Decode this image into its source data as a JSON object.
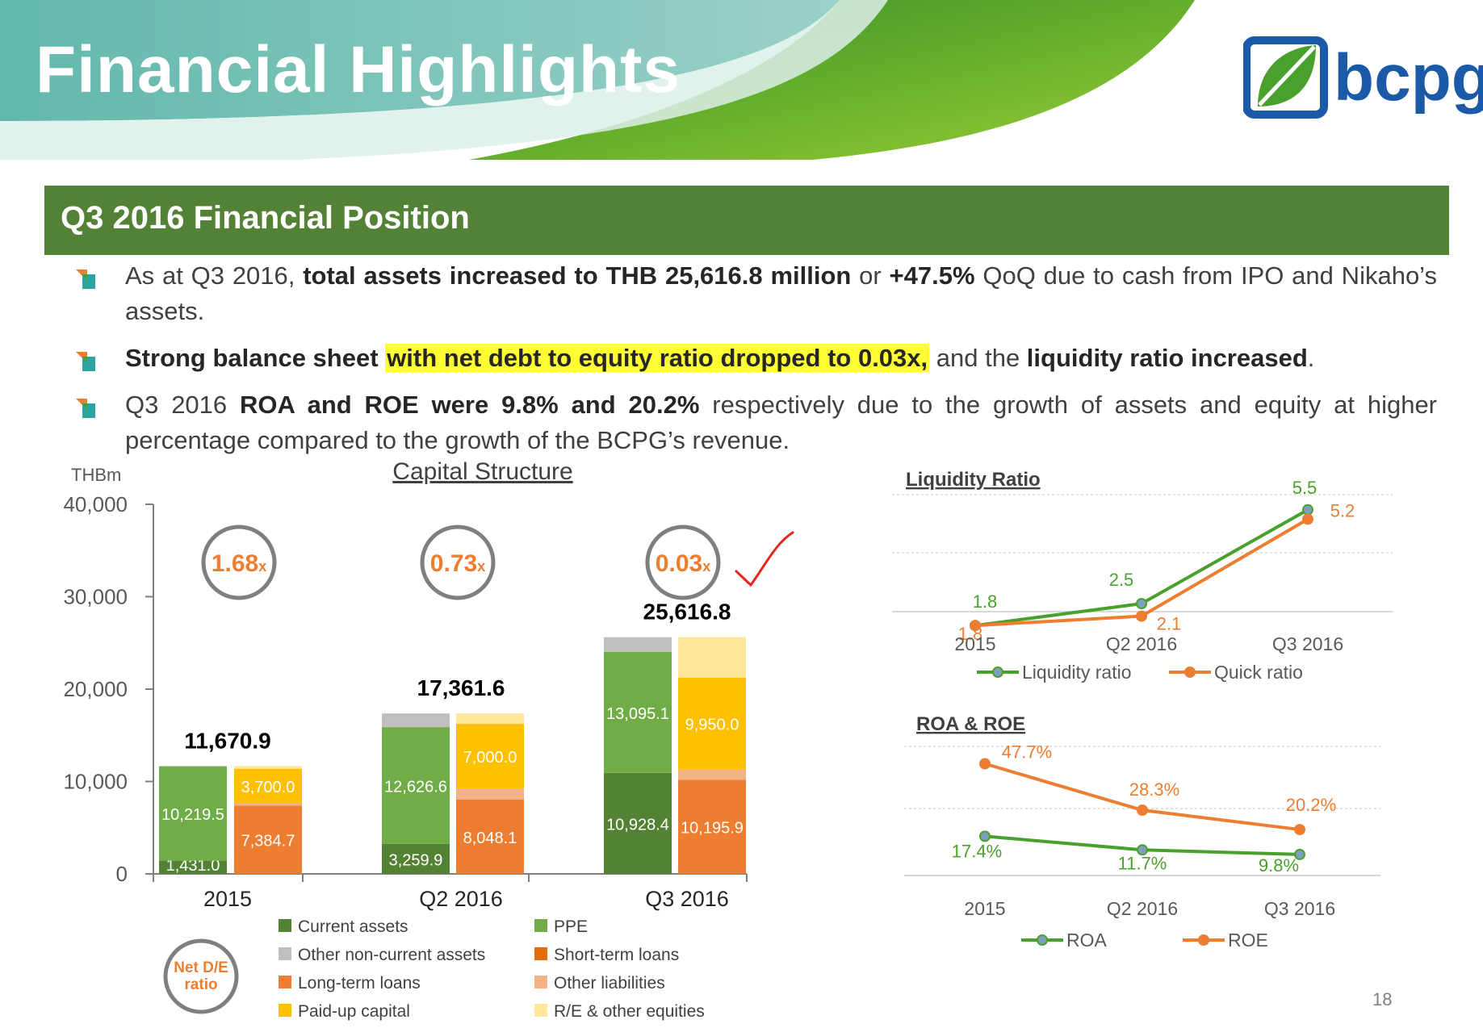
{
  "title": "Financial Highlights",
  "logo": {
    "text": "bcpg"
  },
  "section_title": "Q3 2016 Financial Position",
  "bullets": [
    {
      "p1": "As at Q3 2016, ",
      "b1": "total assets increased to THB 25,616.8 million",
      "p2": " or ",
      "b2": "+47.5%",
      "p3": " QoQ due to cash from IPO and Nikaho’s assets."
    },
    {
      "b1": "Strong balance sheet",
      "h1": "with net debt to equity ratio dropped to 0.03x,",
      "p1": " and the ",
      "b2": "liquidity ratio increased",
      "p2": "."
    },
    {
      "p1": "Q3 2016 ",
      "b1": "ROA and ROE were 9.8% and 20.2%",
      "p2": " respectively due to the growth of assets and equity at higher percentage compared to the growth of the BCPG’s revenue."
    }
  ],
  "page_number": "18",
  "colors": {
    "current_assets": "#548235",
    "ppe": "#70ad47",
    "other_nca": "#bfbfbf",
    "st_loans": "#e46c0a",
    "lt_loans": "#ed7d31",
    "other_liab": "#f4b183",
    "paid_up": "#ffc000",
    "re_other": "#ffe699",
    "green_line": "#4aa02c",
    "orange_line": "#ed7d31",
    "header_green": "#538135",
    "de_text": "#ed7d31"
  },
  "chart_data": [
    {
      "type": "bar",
      "title": "Capital Structure",
      "ylabel": "THBm",
      "ylim": [
        0,
        40000
      ],
      "yticks": [
        "0",
        "10,000",
        "20,000",
        "30,000",
        "40,000"
      ],
      "categories": [
        "2015",
        "Q2 2016",
        "Q3 2016"
      ],
      "totals": [
        "11,670.9",
        "17,361.6",
        "25,616.8"
      ],
      "total_values": [
        11670.9,
        17361.6,
        25616.8
      ],
      "de_ratios": [
        {
          "value": "1.68",
          "unit": "x"
        },
        {
          "value": "0.73",
          "unit": "x"
        },
        {
          "value": "0.03",
          "unit": "x"
        }
      ],
      "de_badge": "Net D/E ratio",
      "assets_series": [
        {
          "name": "Current assets",
          "color": "#548235",
          "values": [
            1431.0,
            3259.9,
            10928.4
          ],
          "labels": [
            "1,431.0",
            "3,259.9",
            "10,928.4"
          ]
        },
        {
          "name": "PPE",
          "color": "#70ad47",
          "values": [
            10219.5,
            12626.6,
            13095.1
          ],
          "labels": [
            "10,219.5",
            "12,626.6",
            "13,095.1"
          ]
        },
        {
          "name": "Other non-current assets",
          "color": "#bfbfbf",
          "values": [
            20.4,
            1475.1,
            1593.3
          ],
          "labels": [
            "",
            "",
            ""
          ]
        }
      ],
      "liab_series": [
        {
          "name": "Short-term loans",
          "color": "#e46c0a",
          "values": [
            0,
            0,
            0
          ],
          "labels": [
            "",
            "",
            ""
          ]
        },
        {
          "name": "Long-term loans",
          "color": "#ed7d31",
          "values": [
            7384.7,
            8048.1,
            10195.9
          ],
          "labels": [
            "7,384.7",
            "8,048.1",
            "10,195.9"
          ]
        },
        {
          "name": "Other liabilities",
          "color": "#f4b183",
          "values": [
            300,
            1200,
            1100
          ],
          "labels": [
            "",
            "",
            ""
          ]
        },
        {
          "name": "Paid-up capital",
          "color": "#ffc000",
          "values": [
            3700.0,
            7000.0,
            9950.0
          ],
          "labels": [
            "3,700.0",
            "7,000.0",
            "9,950.0"
          ]
        },
        {
          "name": "R/E & other equities",
          "color": "#ffe699",
          "values": [
            286.2,
            1113.5,
            4370.9
          ],
          "labels": [
            "",
            "",
            ""
          ]
        }
      ],
      "legend": [
        {
          "name": "Current assets",
          "color": "#548235"
        },
        {
          "name": "PPE",
          "color": "#70ad47"
        },
        {
          "name": "Other non-current assets",
          "color": "#bfbfbf"
        },
        {
          "name": "Short-term loans",
          "color": "#e46c0a"
        },
        {
          "name": "Long-term loans",
          "color": "#ed7d31"
        },
        {
          "name": "Other liabilities",
          "color": "#f4b183"
        },
        {
          "name": "Paid-up capital",
          "color": "#ffc000"
        },
        {
          "name": "R/E & other equities",
          "color": "#ffe699"
        }
      ]
    },
    {
      "type": "line",
      "title": "Liquidity Ratio",
      "categories": [
        "2015",
        "Q2 2016",
        "Q3 2016"
      ],
      "ylim": [
        0,
        6.5
      ],
      "series": [
        {
          "name": "Liquidity ratio",
          "color": "#4aa02c",
          "values": [
            1.8,
            2.5,
            5.5
          ],
          "labels": [
            "1.8",
            "2.5",
            "5.5"
          ]
        },
        {
          "name": "Quick ratio",
          "color": "#ed7d31",
          "values": [
            1.8,
            2.1,
            5.2
          ],
          "labels": [
            "1.8",
            "2.1",
            "5.2"
          ]
        }
      ]
    },
    {
      "type": "line",
      "title": "ROA & ROE",
      "categories": [
        "2015",
        "Q2 2016",
        "Q3 2016"
      ],
      "ylim": [
        0,
        60
      ],
      "series": [
        {
          "name": "ROA",
          "color": "#4aa02c",
          "values": [
            17.4,
            11.7,
            9.8
          ],
          "labels": [
            "17.4%",
            "11.7%",
            "9.8%"
          ]
        },
        {
          "name": "ROE",
          "color": "#ed7d31",
          "values": [
            47.7,
            28.3,
            20.2
          ],
          "labels": [
            "47.7%",
            "28.3%",
            "20.2%"
          ]
        }
      ]
    }
  ]
}
